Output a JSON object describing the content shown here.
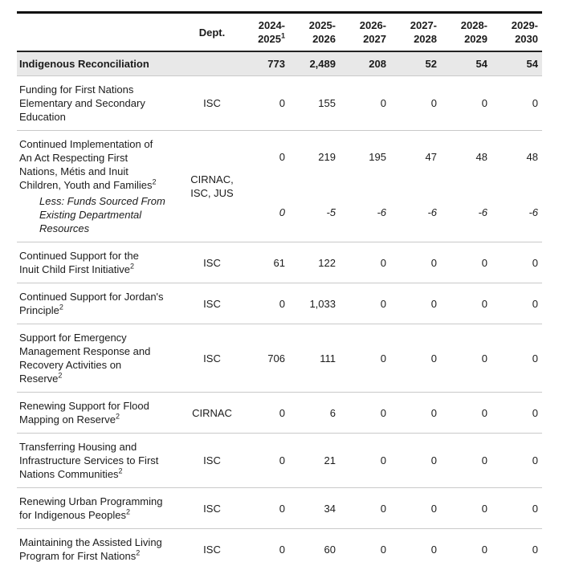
{
  "header": {
    "dept_label": "Dept.",
    "years": [
      {
        "label": "2024-\n2025",
        "sup": "1"
      },
      {
        "label": "2025-\n2026",
        "sup": ""
      },
      {
        "label": "2026-\n2027",
        "sup": ""
      },
      {
        "label": "2027-\n2028",
        "sup": ""
      },
      {
        "label": "2028-\n2029",
        "sup": ""
      },
      {
        "label": "2029-\n2030",
        "sup": ""
      }
    ]
  },
  "section": {
    "label": "Indigenous Reconciliation",
    "values": [
      "773",
      "2,489",
      "208",
      "52",
      "54",
      "54"
    ]
  },
  "rows": [
    {
      "program": "Funding for First Nations\nElementary and Secondary\nEducation",
      "sup": "",
      "dept": "ISC",
      "values": [
        "0",
        "155",
        "0",
        "0",
        "0",
        "0"
      ]
    },
    {
      "program": "Continued Implementation of\nAn Act Respecting First\nNations, Métis and Inuit\nChildren, Youth and Families",
      "sup": "2",
      "dept": "CIRNAC,\nISC, JUS",
      "values": [
        "0",
        "219",
        "195",
        "47",
        "48",
        "48"
      ],
      "less": {
        "label": "Less: Funds Sourced From\nExisting Departmental\nResources",
        "values": [
          "0",
          "-5",
          "-6",
          "-6",
          "-6",
          "-6"
        ]
      }
    },
    {
      "program": "Continued Support for the\nInuit Child First Initiative",
      "sup": "2",
      "dept": "ISC",
      "values": [
        "61",
        "122",
        "0",
        "0",
        "0",
        "0"
      ]
    },
    {
      "program": "Continued Support for Jordan's\nPrinciple",
      "sup": "2",
      "dept": "ISC",
      "values": [
        "0",
        "1,033",
        "0",
        "0",
        "0",
        "0"
      ]
    },
    {
      "program": "Support for Emergency\nManagement Response and\nRecovery Activities on\nReserve",
      "sup": "2",
      "dept": "ISC",
      "values": [
        "706",
        "111",
        "0",
        "0",
        "0",
        "0"
      ]
    },
    {
      "program": "Renewing Support for Flood\nMapping on Reserve",
      "sup": "2",
      "dept": "CIRNAC",
      "values": [
        "0",
        "6",
        "0",
        "0",
        "0",
        "0"
      ]
    },
    {
      "program": "Transferring Housing and\nInfrastructure Services to First\nNations Communities",
      "sup": "2",
      "dept": "ISC",
      "values": [
        "0",
        "21",
        "0",
        "0",
        "0",
        "0"
      ]
    },
    {
      "program": "Renewing Urban Programming\nfor Indigenous Peoples",
      "sup": "2",
      "dept": "ISC",
      "values": [
        "0",
        "34",
        "0",
        "0",
        "0",
        "0"
      ]
    },
    {
      "program": "Maintaining the Assisted Living\nProgram for First Nations",
      "sup": "2",
      "dept": "ISC",
      "values": [
        "0",
        "60",
        "0",
        "0",
        "0",
        "0"
      ]
    }
  ]
}
